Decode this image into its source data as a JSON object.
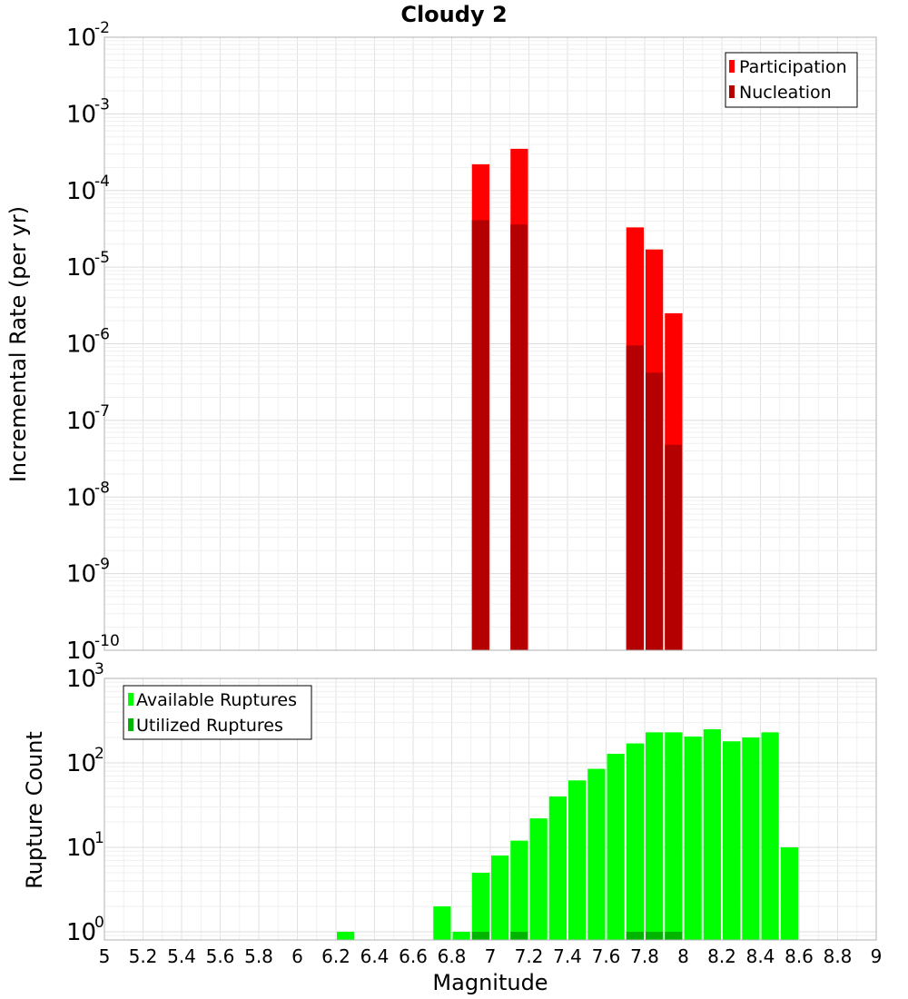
{
  "title": "Cloudy 2",
  "chart_data": [
    {
      "type": "bar",
      "ylabel": "Incremental Rate (per yr)",
      "yscale": "log",
      "ylim": [
        1e-10,
        0.01
      ],
      "xlim": [
        5,
        9
      ],
      "bin_width": 0.1,
      "legend_position": "top-right",
      "grid": true,
      "series": [
        {
          "name": "Participation",
          "color": "#ff0000",
          "x": [
            6.95,
            7.15,
            7.75,
            7.85,
            7.95
          ],
          "values": [
            0.00022,
            0.00035,
            3.3e-05,
            1.7e-05,
            2.5e-06
          ]
        },
        {
          "name": "Nucleation",
          "color": "#b40000",
          "x": [
            6.95,
            7.15,
            7.75,
            7.85,
            7.95
          ],
          "values": [
            4.1e-05,
            3.6e-05,
            9.5e-07,
            4.2e-07,
            4.8e-08
          ]
        }
      ]
    },
    {
      "type": "bar",
      "ylabel": "Rupture Count",
      "yscale": "log",
      "ylim": [
        0.8,
        1000
      ],
      "xlim": [
        5,
        9
      ],
      "bin_width": 0.1,
      "legend_position": "top-left",
      "grid": true,
      "xlabel": "Magnitude",
      "series": [
        {
          "name": "Available Ruptures",
          "color": "#00ff00",
          "x": [
            6.25,
            6.75,
            6.85,
            6.95,
            7.05,
            7.15,
            7.25,
            7.35,
            7.45,
            7.55,
            7.65,
            7.75,
            7.85,
            7.95,
            8.05,
            8.15,
            8.25,
            8.35,
            8.45,
            8.55
          ],
          "values": [
            1,
            2,
            1,
            5,
            8,
            12,
            22,
            40,
            62,
            85,
            128,
            170,
            230,
            230,
            205,
            250,
            180,
            200,
            230,
            10
          ]
        },
        {
          "name": "Utilized Ruptures",
          "color": "#00b400",
          "x": [
            6.95,
            7.15,
            7.75,
            7.85,
            7.95
          ],
          "values": [
            1,
            1,
            1,
            1,
            1
          ]
        }
      ]
    }
  ],
  "xticks": [
    "5",
    "5.2",
    "5.4",
    "5.6",
    "5.8",
    "6",
    "6.2",
    "6.4",
    "6.6",
    "6.8",
    "7",
    "7.2",
    "7.4",
    "7.6",
    "7.8",
    "8",
    "8.2",
    "8.4",
    "8.6",
    "8.8",
    "9"
  ],
  "top_yticks": [
    {
      "base": "10",
      "exp": "-10",
      "value": 1e-10
    },
    {
      "base": "10",
      "exp": "-9",
      "value": 1e-09
    },
    {
      "base": "10",
      "exp": "-8",
      "value": 1e-08
    },
    {
      "base": "10",
      "exp": "-7",
      "value": 1e-07
    },
    {
      "base": "10",
      "exp": "-6",
      "value": 1e-06
    },
    {
      "base": "10",
      "exp": "-5",
      "value": 1e-05
    },
    {
      "base": "10",
      "exp": "-4",
      "value": 0.0001
    },
    {
      "base": "10",
      "exp": "-3",
      "value": 0.001
    },
    {
      "base": "10",
      "exp": "-2",
      "value": 0.01
    }
  ],
  "bottom_yticks": [
    {
      "base": "10",
      "exp": "0",
      "value": 1
    },
    {
      "base": "10",
      "exp": "1",
      "value": 10
    },
    {
      "base": "10",
      "exp": "2",
      "value": 100
    },
    {
      "base": "10",
      "exp": "3",
      "value": 1000
    }
  ]
}
